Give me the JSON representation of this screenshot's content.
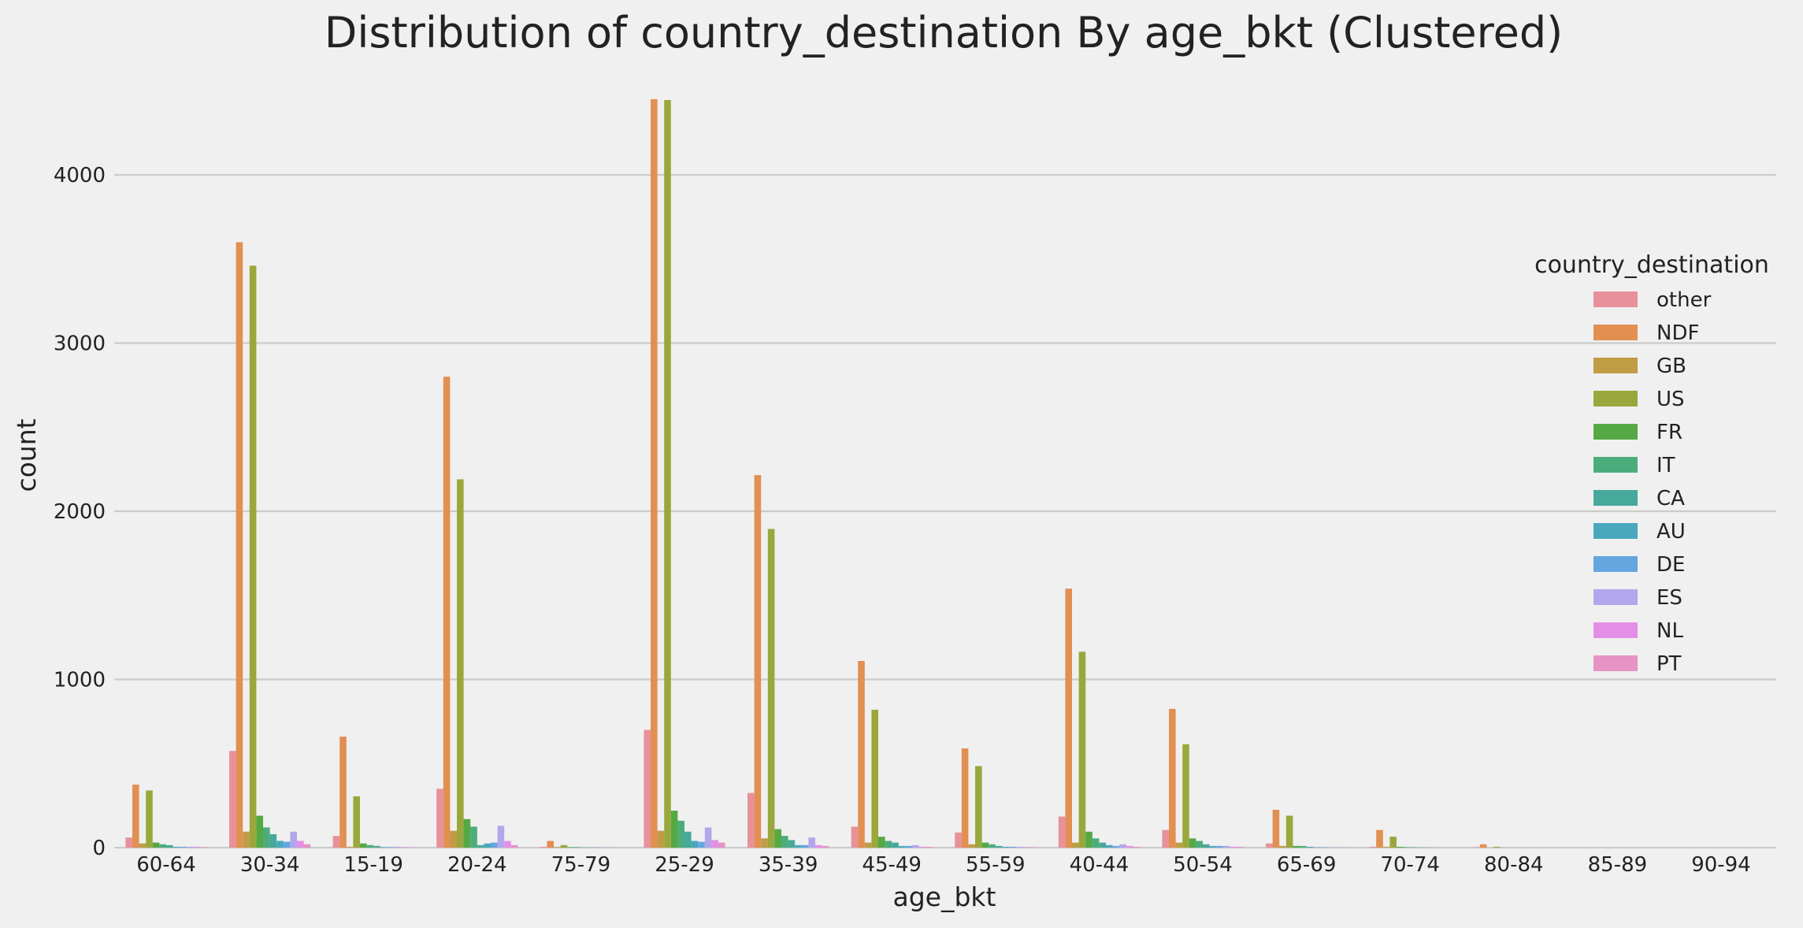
{
  "chart_data": {
    "type": "bar",
    "title": "Distribution of country_destination By age_bkt (Clustered)",
    "xlabel": "age_bkt",
    "ylabel": "count",
    "ylim": [
      0,
      4500
    ],
    "yticks": [
      0,
      1000,
      2000,
      3000,
      4000
    ],
    "grid": "horizontal",
    "legend_position": "right",
    "legend_title": "country_destination",
    "categories": [
      "60-64",
      "30-34",
      "15-19",
      "20-24",
      "75-79",
      "25-29",
      "35-39",
      "45-49",
      "55-59",
      "40-44",
      "50-54",
      "65-69",
      "70-74",
      "80-84",
      "85-89",
      "90-94"
    ],
    "series": [
      {
        "name": "other",
        "color": "#e8919a",
        "values": [
          60,
          575,
          70,
          350,
          5,
          700,
          325,
          125,
          90,
          185,
          105,
          25,
          5,
          2,
          0,
          0
        ]
      },
      {
        "name": "NDF",
        "color": "#e28f52",
        "values": [
          375,
          3600,
          660,
          2800,
          40,
          4450,
          2215,
          1110,
          590,
          1540,
          825,
          225,
          105,
          20,
          0,
          0
        ]
      },
      {
        "name": "GB",
        "color": "#c09c44",
        "values": [
          25,
          95,
          5,
          100,
          3,
          100,
          55,
          30,
          20,
          30,
          30,
          10,
          5,
          0,
          0,
          0
        ]
      },
      {
        "name": "US",
        "color": "#9aa73c",
        "values": [
          340,
          3460,
          305,
          2190,
          15,
          4445,
          1895,
          820,
          485,
          1165,
          615,
          190,
          65,
          5,
          0,
          0
        ]
      },
      {
        "name": "FR",
        "color": "#54a944",
        "values": [
          30,
          190,
          25,
          170,
          3,
          220,
          110,
          65,
          30,
          95,
          55,
          10,
          5,
          0,
          0,
          0
        ]
      },
      {
        "name": "IT",
        "color": "#4cad7c",
        "values": [
          20,
          120,
          15,
          125,
          3,
          160,
          70,
          40,
          20,
          55,
          40,
          10,
          3,
          0,
          0,
          0
        ]
      },
      {
        "name": "CA",
        "color": "#47a99b",
        "values": [
          15,
          80,
          10,
          15,
          1,
          95,
          45,
          30,
          10,
          30,
          20,
          5,
          2,
          0,
          0,
          0
        ]
      },
      {
        "name": "AU",
        "color": "#4aa8bd",
        "values": [
          5,
          40,
          3,
          25,
          1,
          40,
          15,
          10,
          5,
          15,
          10,
          2,
          1,
          0,
          0,
          0
        ]
      },
      {
        "name": "DE",
        "color": "#64a6e0",
        "values": [
          5,
          35,
          3,
          30,
          1,
          35,
          15,
          10,
          5,
          10,
          10,
          2,
          1,
          0,
          0,
          0
        ]
      },
      {
        "name": "ES",
        "color": "#b2a6ec",
        "values": [
          5,
          95,
          5,
          130,
          1,
          120,
          60,
          15,
          5,
          20,
          10,
          2,
          1,
          0,
          0,
          0
        ]
      },
      {
        "name": "NL",
        "color": "#e48fe7",
        "values": [
          5,
          40,
          3,
          40,
          1,
          45,
          15,
          5,
          3,
          10,
          5,
          1,
          0,
          0,
          0,
          0
        ]
      },
      {
        "name": "PT",
        "color": "#e693c6",
        "values": [
          3,
          20,
          2,
          15,
          0,
          30,
          10,
          5,
          2,
          5,
          5,
          1,
          0,
          0,
          0,
          0
        ]
      }
    ]
  }
}
